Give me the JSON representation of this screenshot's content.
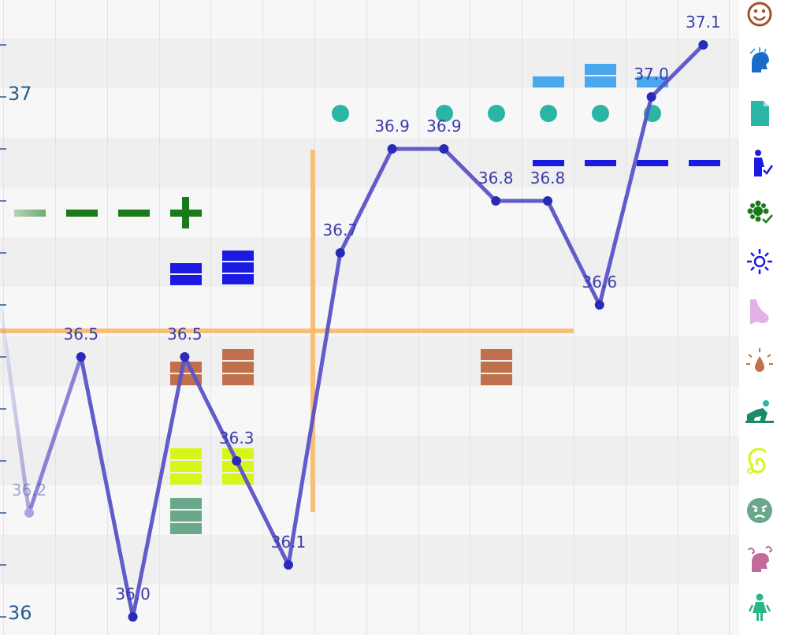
{
  "y_axis": {
    "top_tick": "37",
    "bottom_tick": "36"
  },
  "chart_data": {
    "type": "line",
    "title": "",
    "xlabel": "",
    "ylabel": "",
    "ylim": [
      35.98,
      37.12
    ],
    "series": [
      {
        "color": "#5a52c8",
        "points": [
          {
            "x": 1,
            "y": 36.2,
            "label": "36.2"
          },
          {
            "x": 2,
            "y": 36.5,
            "label": "36.5"
          },
          {
            "x": 3,
            "y": 36.0,
            "label": "36.0"
          },
          {
            "x": 4,
            "y": 36.5,
            "label": "36.5"
          },
          {
            "x": 5,
            "y": 36.3,
            "label": "36.3"
          },
          {
            "x": 6,
            "y": 36.1,
            "label": "36.1"
          },
          {
            "x": 7,
            "y": 36.7,
            "label": "36.7"
          },
          {
            "x": 8,
            "y": 36.9,
            "label": "36.9"
          },
          {
            "x": 9,
            "y": 36.9,
            "label": "36.9"
          },
          {
            "x": 10,
            "y": 36.8,
            "label": "36.8"
          },
          {
            "x": 11,
            "y": 36.8,
            "label": "36.8"
          },
          {
            "x": 12,
            "y": 36.6,
            "label": "36.6"
          },
          {
            "x": 13,
            "y": 37.0,
            "label": "37.0"
          },
          {
            "x": 14,
            "y": 37.1,
            "label": "37.1"
          }
        ]
      }
    ],
    "coverline": {
      "y": 36.5,
      "color": "#f7b560"
    },
    "ovulation_marker": {
      "x": 6.5,
      "color": "#f7b560"
    }
  },
  "colors": {
    "line": "#5a52c8",
    "row_light": "#f2f2f2",
    "row_lighter": "#f9f9f9",
    "green_marker": "#1a7a1a",
    "blue_marker": "#1a1ae0",
    "light_blue_marker": "#4aa8ee",
    "brown_marker": "#c0704a",
    "yellow_marker": "#d8f51a",
    "sage_marker": "#6aa88c",
    "teal_dot": "#2bb5a5"
  },
  "side_icons": [
    {
      "name": "mood-smiley-icon",
      "color": "#a0522d"
    },
    {
      "name": "head-icon",
      "color": "#4aa8ee"
    },
    {
      "name": "document-icon",
      "color": "#2bb5a5"
    },
    {
      "name": "pregnancy-test-icon",
      "color": "#1a1ae0"
    },
    {
      "name": "flower-check-icon",
      "color": "#1a7a1a"
    },
    {
      "name": "sparkle-icon",
      "color": "#1a1ae0"
    },
    {
      "name": "breast-icon",
      "color": "#e4b0e8"
    },
    {
      "name": "drop-icon",
      "color": "#c0704a"
    },
    {
      "name": "exercise-icon",
      "color": "#2bb5a5"
    },
    {
      "name": "spiral-icon",
      "color": "#d8f51a"
    },
    {
      "name": "angry-face-icon",
      "color": "#6aa88c"
    },
    {
      "name": "dizzy-person-icon",
      "color": "#c46a9a"
    },
    {
      "name": "woman-icon",
      "color": "#2bb58a"
    }
  ]
}
